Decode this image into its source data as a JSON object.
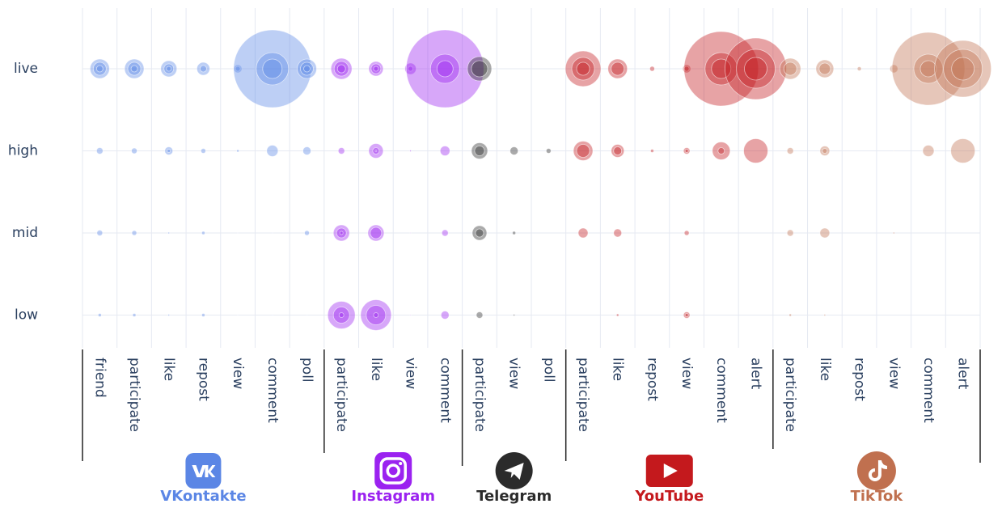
{
  "chart_data": {
    "type": "bubble",
    "rows": [
      "live",
      "high",
      "mid",
      "low"
    ],
    "series": [
      {
        "name": "VKontakte",
        "color": "#5b86e5",
        "categories": [
          "friend",
          "participate",
          "like",
          "repost",
          "view",
          "comment",
          "poll"
        ],
        "sizes": [
          [
            [
              12,
              8,
              4
            ],
            [
              12,
              8,
              4
            ],
            [
              10,
              6,
              3
            ],
            [
              8,
              4
            ],
            [
              5,
              3
            ],
            [
              48,
              20,
              12
            ],
            [
              12,
              8,
              4
            ]
          ],
          [
            [
              4
            ],
            [
              3.5
            ],
            [
              5,
              2
            ],
            [
              3
            ],
            [
              1.5
            ],
            [
              7
            ],
            [
              5
            ]
          ],
          [
            [
              3.5
            ],
            [
              3
            ],
            [
              1
            ],
            [
              2
            ],
            [
              0.5
            ],
            [
              0.5
            ],
            [
              3
            ]
          ],
          [
            [
              2
            ],
            [
              2
            ],
            [
              1
            ],
            [
              2
            ],
            [
              0.5
            ],
            [
              0.5
            ],
            [
              0.5
            ]
          ]
        ]
      },
      {
        "name": "Instagram",
        "color": "#9b22f0",
        "categories": [
          "participate",
          "like",
          "view",
          "comment"
        ],
        "sizes": [
          [
            [
              13,
              9,
              5
            ],
            [
              9,
              6,
              3
            ],
            [
              7,
              3
            ],
            [
              48,
              18,
              10
            ]
          ],
          [
            [
              4
            ],
            [
              9,
              4,
              1
            ],
            [
              1
            ],
            [
              6
            ]
          ],
          [
            [
              10,
              6,
              2
            ],
            [
              10,
              7
            ],
            [
              0.5
            ],
            [
              4
            ]
          ],
          [
            [
              17,
              10,
              3
            ],
            [
              19,
              12,
              3
            ],
            [
              0.5
            ],
            [
              5
            ]
          ]
        ]
      },
      {
        "name": "Telegram",
        "color": "#2b2b2b",
        "categories": [
          "participate",
          "view",
          "poll"
        ],
        "sizes": [
          [
            [
              15,
              10
            ],
            [
              0
            ],
            [
              0
            ]
          ],
          [
            [
              10,
              6
            ],
            [
              5
            ],
            [
              3
            ]
          ],
          [
            [
              9,
              5
            ],
            [
              2
            ],
            [
              0
            ]
          ],
          [
            [
              4
            ],
            [
              1
            ],
            [
              0
            ]
          ]
        ]
      },
      {
        "name": "YouTube",
        "color": "#c4191d",
        "categories": [
          "participate",
          "like",
          "repost",
          "view",
          "comment",
          "alert"
        ],
        "sizes": [
          [
            [
              22,
              14,
              8
            ],
            [
              12,
              8
            ],
            [
              3
            ],
            [
              5,
              3
            ],
            [
              46,
              20,
              12
            ],
            [
              38,
              24,
              14
            ]
          ],
          [
            [
              12,
              8
            ],
            [
              8,
              5
            ],
            [
              2
            ],
            [
              4,
              2
            ],
            [
              11,
              4
            ],
            [
              15
            ]
          ],
          [
            [
              6
            ],
            [
              5
            ],
            [
              0
            ],
            [
              3
            ],
            [
              0
            ],
            [
              0
            ]
          ],
          [
            [
              0
            ],
            [
              1.5
            ],
            [
              0
            ],
            [
              4,
              2
            ],
            [
              0
            ],
            [
              0
            ]
          ]
        ]
      },
      {
        "name": "TikTok",
        "color": "#c0704f",
        "categories": [
          "participate",
          "like",
          "repost",
          "view",
          "comment",
          "alert"
        ],
        "sizes": [
          [
            [
              13,
              8
            ],
            [
              11,
              7
            ],
            [
              2.5
            ],
            [
              5
            ],
            [
              45,
              18,
              10
            ],
            [
              35,
              24,
              14
            ]
          ],
          [
            [
              4
            ],
            [
              6,
              3
            ],
            [
              0
            ],
            [
              0.5
            ],
            [
              7
            ],
            [
              15
            ]
          ],
          [
            [
              4
            ],
            [
              6
            ],
            [
              0
            ],
            [
              1
            ],
            [
              0
            ],
            [
              0
            ]
          ],
          [
            [
              1.5
            ],
            [
              1
            ],
            [
              0
            ],
            [
              0
            ],
            [
              0
            ],
            [
              0
            ]
          ]
        ]
      }
    ]
  }
}
